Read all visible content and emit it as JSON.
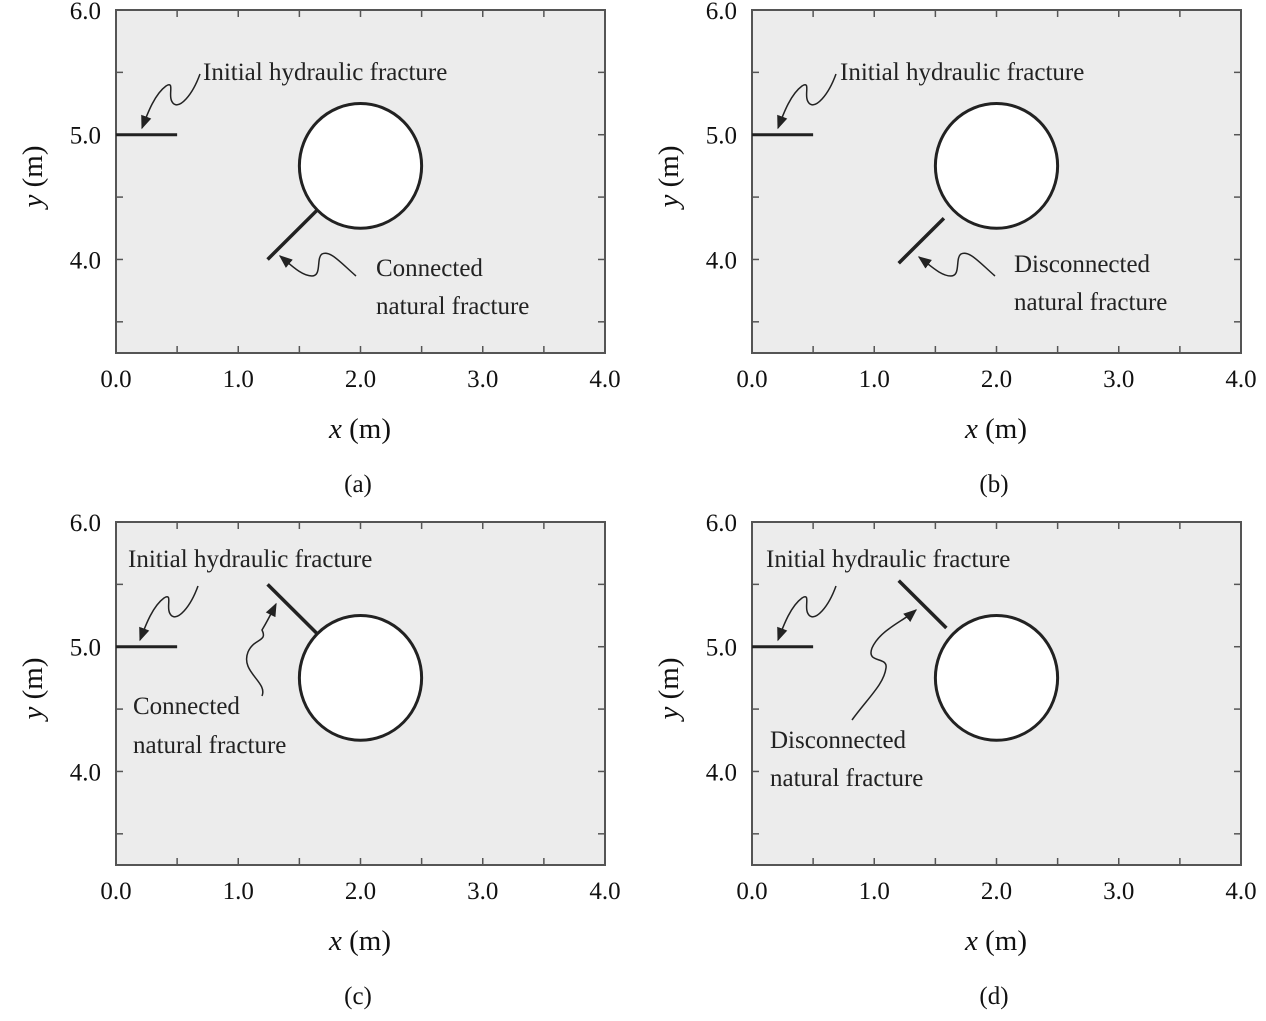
{
  "chart_data": [
    {
      "type": "diagram",
      "panel_label": "(a)",
      "xlabel_var": "x",
      "xlabel_unit": " (m)",
      "ylabel_var": "y",
      "ylabel_unit": " (m)",
      "xlim": [
        0,
        4
      ],
      "ylim": [
        3.25,
        6
      ],
      "x_ticks": [
        "0.0",
        "1.0",
        "2.0",
        "3.0",
        "4.0"
      ],
      "y_ticks": [
        "4.0",
        "5.0",
        "6.0"
      ],
      "hydraulic_fracture": {
        "from": [
          0,
          5
        ],
        "to": [
          0.5,
          5
        ],
        "label": "Initial hydraulic fracture"
      },
      "hole": {
        "center": [
          2.0,
          4.75
        ],
        "radius": 0.5
      },
      "natural_fracture": {
        "from": [
          1.24,
          4.0
        ],
        "to": [
          1.646,
          4.396
        ],
        "label_lines": [
          "Connected",
          "natural fracture"
        ]
      }
    },
    {
      "type": "diagram",
      "panel_label": "(b)",
      "xlabel_var": "x",
      "xlabel_unit": " (m)",
      "ylabel_var": "y",
      "ylabel_unit": " (m)",
      "xlim": [
        0,
        4
      ],
      "ylim": [
        3.25,
        6
      ],
      "x_ticks": [
        "0.0",
        "1.0",
        "2.0",
        "3.0",
        "4.0"
      ],
      "y_ticks": [
        "4.0",
        "5.0",
        "6.0"
      ],
      "hydraulic_fracture": {
        "from": [
          0,
          5
        ],
        "to": [
          0.5,
          5
        ],
        "label": "Initial hydraulic fracture"
      },
      "hole": {
        "center": [
          2.0,
          4.75
        ],
        "radius": 0.5
      },
      "natural_fracture": {
        "from": [
          1.2,
          3.97
        ],
        "to": [
          1.57,
          4.33
        ],
        "label_lines": [
          "Disconnected",
          "natural fracture"
        ]
      }
    },
    {
      "type": "diagram",
      "panel_label": "(c)",
      "xlabel_var": "x",
      "xlabel_unit": " (m)",
      "ylabel_var": "y",
      "ylabel_unit": " (m)",
      "xlim": [
        0,
        4
      ],
      "ylim": [
        3.25,
        6
      ],
      "x_ticks": [
        "0.0",
        "1.0",
        "2.0",
        "3.0",
        "4.0"
      ],
      "y_ticks": [
        "4.0",
        "5.0",
        "6.0"
      ],
      "hydraulic_fracture": {
        "from": [
          0,
          5
        ],
        "to": [
          0.5,
          5
        ],
        "label": "Initial hydraulic fracture"
      },
      "hole": {
        "center": [
          2.0,
          4.75
        ],
        "radius": 0.5
      },
      "natural_fracture": {
        "from": [
          1.24,
          5.5
        ],
        "to": [
          1.646,
          5.104
        ],
        "label_lines": [
          "Connected",
          "natural fracture"
        ]
      }
    },
    {
      "type": "diagram",
      "panel_label": "(d)",
      "xlabel_var": "x",
      "xlabel_unit": " (m)",
      "ylabel_var": "y",
      "ylabel_unit": " (m)",
      "xlim": [
        0,
        4
      ],
      "ylim": [
        3.25,
        6
      ],
      "x_ticks": [
        "0.0",
        "1.0",
        "2.0",
        "3.0",
        "4.0"
      ],
      "y_ticks": [
        "4.0",
        "5.0",
        "6.0"
      ],
      "hydraulic_fracture": {
        "from": [
          0,
          5
        ],
        "to": [
          0.5,
          5
        ],
        "label": "Initial hydraulic fracture"
      },
      "hole": {
        "center": [
          2.0,
          4.75
        ],
        "radius": 0.5
      },
      "natural_fracture": {
        "from": [
          1.2,
          5.53
        ],
        "to": [
          1.59,
          5.15
        ],
        "label_lines": [
          "Disconnected",
          "natural fracture"
        ]
      }
    }
  ],
  "colors": {
    "domain_fill": "#ececec",
    "frame": "#555555",
    "hole_fill": "#ffffff",
    "line": "#222222"
  }
}
